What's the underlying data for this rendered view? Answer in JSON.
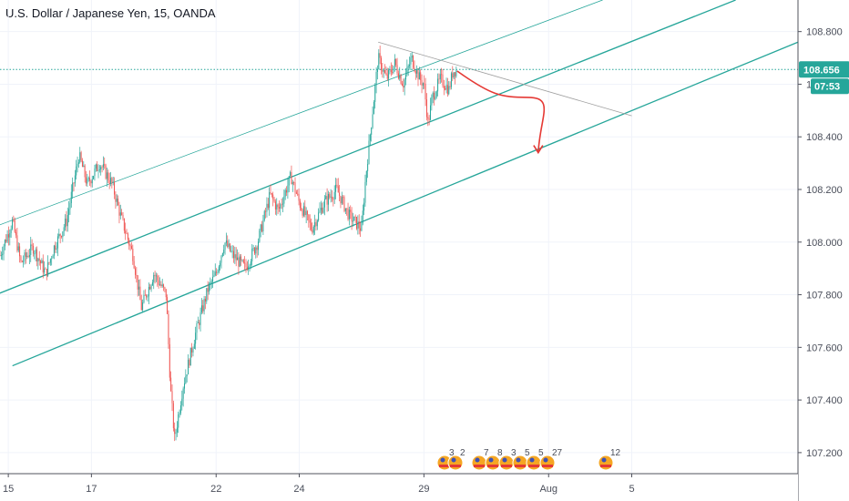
{
  "header": {
    "title": "U.S. Dollar / Japanese Yen, 15, OANDA"
  },
  "price_tags": {
    "last_price": "108.656",
    "countdown": "07:53",
    "last_price_color": "#26a69a",
    "countdown_color": "#26a69a"
  },
  "events": {
    "counts": [
      "3",
      "2",
      "7",
      "8",
      "3",
      "5",
      "5",
      "27",
      "12"
    ]
  },
  "colors": {
    "up": "#26a69a",
    "down": "#ef5350",
    "channel": "#26a69a",
    "resistance": "#9e9e9e",
    "forecast_arrow": "#e53935"
  },
  "chart_data": {
    "type": "candlestick",
    "symbol": "U.S. Dollar / Japanese Yen",
    "interval": "15",
    "source": "OANDA",
    "last_price": 108.656,
    "ylim": [
      107.12,
      108.92
    ],
    "y_ticks": [
      108.8,
      108.6,
      108.4,
      108.2,
      108.0,
      107.8,
      107.6,
      107.4,
      107.2
    ],
    "y_tick_labels": [
      "108.800",
      "108.600",
      "108.400",
      "108.200",
      "108.000",
      "107.800",
      "107.600",
      "107.400",
      "107.200"
    ],
    "x_ticks": [
      {
        "label": "15",
        "x": 0
      },
      {
        "label": "17",
        "x": 2
      },
      {
        "label": "22",
        "x": 5
      },
      {
        "label": "24",
        "x": 7
      },
      {
        "label": "29",
        "x": 10
      },
      {
        "label": "Aug",
        "x": 13
      },
      {
        "label": "5",
        "x": 15
      }
    ],
    "xlim": [
      -0.2,
      19.0
    ],
    "price_path": [
      [
        -0.2,
        107.95
      ],
      [
        0.1,
        108.08
      ],
      [
        0.3,
        107.92
      ],
      [
        0.6,
        107.98
      ],
      [
        0.9,
        107.88
      ],
      [
        1.1,
        107.98
      ],
      [
        1.4,
        108.08
      ],
      [
        1.7,
        108.33
      ],
      [
        1.9,
        108.22
      ],
      [
        2.2,
        108.3
      ],
      [
        2.5,
        108.22
      ],
      [
        2.7,
        108.1
      ],
      [
        3.0,
        107.95
      ],
      [
        3.2,
        107.75
      ],
      [
        3.5,
        107.88
      ],
      [
        3.8,
        107.8
      ],
      [
        3.9,
        107.45
      ],
      [
        4.0,
        107.25
      ],
      [
        4.2,
        107.45
      ],
      [
        4.5,
        107.65
      ],
      [
        4.8,
        107.82
      ],
      [
        5.0,
        107.88
      ],
      [
        5.2,
        108.0
      ],
      [
        5.4,
        107.95
      ],
      [
        5.7,
        107.9
      ],
      [
        6.0,
        108.0
      ],
      [
        6.3,
        108.18
      ],
      [
        6.5,
        108.12
      ],
      [
        6.8,
        108.25
      ],
      [
        7.0,
        108.15
      ],
      [
        7.3,
        108.05
      ],
      [
        7.6,
        108.15
      ],
      [
        7.9,
        108.2
      ],
      [
        8.2,
        108.1
      ],
      [
        8.5,
        108.05
      ],
      [
        8.6,
        108.25
      ],
      [
        8.8,
        108.55
      ],
      [
        8.9,
        108.7
      ],
      [
        9.1,
        108.62
      ],
      [
        9.3,
        108.68
      ],
      [
        9.5,
        108.6
      ],
      [
        9.7,
        108.7
      ],
      [
        9.9,
        108.62
      ],
      [
        10.0,
        108.6
      ],
      [
        10.1,
        108.45
      ],
      [
        10.2,
        108.55
      ],
      [
        10.4,
        108.62
      ],
      [
        10.6,
        108.58
      ],
      [
        10.7,
        108.65
      ],
      [
        10.8,
        108.656
      ]
    ],
    "volatility": 0.035,
    "trend_lines": [
      {
        "name": "channel-upper",
        "points": [
          [
            -0.3,
            108.06
          ],
          [
            14.3,
            108.92
          ]
        ],
        "width": 0.8
      },
      {
        "name": "channel-mid",
        "points": [
          [
            -0.3,
            107.8
          ],
          [
            17.5,
            108.92
          ]
        ],
        "width": 1.3
      },
      {
        "name": "channel-lower",
        "points": [
          [
            0.1,
            107.53
          ],
          [
            19.0,
            108.76
          ]
        ],
        "width": 1.3
      },
      {
        "name": "resistance-line",
        "points": [
          [
            8.9,
            108.76
          ],
          [
            15.0,
            108.48
          ]
        ],
        "width": 0.8
      }
    ],
    "forecast_arrow": [
      [
        10.8,
        108.65
      ],
      [
        11.6,
        108.56
      ],
      [
        12.5,
        108.55
      ],
      [
        12.8,
        108.48
      ],
      [
        12.75,
        108.34
      ]
    ],
    "grid": true,
    "legend": "none"
  }
}
